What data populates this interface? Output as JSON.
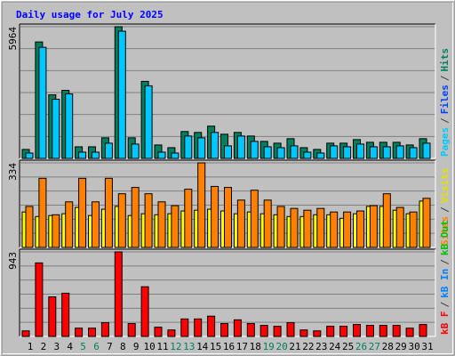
{
  "chart_data": [
    {
      "type": "bar",
      "title": "Daily usage for July 2025",
      "ylim": [
        0,
        5964
      ],
      "yticks": [
        5964
      ],
      "series": [
        {
          "name": "Hits",
          "color": "#00805c",
          "values": [
            406,
            5274,
            2881,
            3083,
            527,
            527,
            933,
            5964,
            933,
            3489,
            609,
            487,
            1217,
            1177,
            1461,
            1095,
            1177,
            1014,
            771,
            690,
            893,
            487,
            406,
            690,
            690,
            852,
            730,
            730,
            730,
            609,
            893
          ]
        },
        {
          "name": "Pages",
          "color": "#00c8ff",
          "values": [
            243,
            5031,
            2678,
            2921,
            284,
            284,
            690,
            5761,
            649,
            3286,
            284,
            243,
            1014,
            933,
            1177,
            568,
            1014,
            771,
            527,
            487,
            568,
            284,
            243,
            568,
            527,
            649,
            527,
            527,
            568,
            487,
            690
          ]
        }
      ],
      "legend": [
        {
          "label": "Pages",
          "color": "#00c8ff"
        },
        {
          "label": "/",
          "color": "#404040"
        },
        {
          "label": "Files",
          "color": "#0040ff"
        },
        {
          "label": "/",
          "color": "#404040"
        },
        {
          "label": "Hits",
          "color": "#00805c"
        }
      ]
    },
    {
      "type": "bar",
      "ylim": [
        0,
        334
      ],
      "yticks": [
        334
      ],
      "series": [
        {
          "name": "Visits",
          "color": "#ffff00",
          "values": [
            140,
            122,
            126,
            133,
            158,
            126,
            151,
            162,
            126,
            133,
            129,
            133,
            144,
            147,
            151,
            144,
            133,
            140,
            133,
            129,
            122,
            122,
            129,
            129,
            115,
            133,
            162,
            162,
            147,
            133,
            183
          ]
        },
        {
          "name": "Sites",
          "color": "#ff8000",
          "values": [
            162,
            273,
            129,
            180,
            273,
            180,
            273,
            212,
            237,
            212,
            180,
            165,
            230,
            334,
            241,
            237,
            187,
            226,
            187,
            162,
            154,
            147,
            154,
            140,
            140,
            144,
            165,
            212,
            158,
            140,
            194
          ]
        }
      ],
      "legend": [
        {
          "label": "Sites",
          "color": "#ff8000"
        },
        {
          "label": "/",
          "color": "#404040"
        },
        {
          "label": "Visits",
          "color": "#e0e000"
        }
      ]
    },
    {
      "type": "bar",
      "ylim": [
        0,
        943
      ],
      "yticks": [
        943
      ],
      "categories": [
        "1",
        "2",
        "3",
        "4",
        "5",
        "6",
        "7",
        "8",
        "9",
        "10",
        "11",
        "12",
        "13",
        "14",
        "15",
        "16",
        "17",
        "18",
        "19",
        "20",
        "21",
        "22",
        "23",
        "24",
        "25",
        "26",
        "27",
        "28",
        "29",
        "30",
        "31"
      ],
      "highlight_categories": [
        "5",
        "6",
        "12",
        "13",
        "19",
        "20",
        "26",
        "27"
      ],
      "highlight_color": "#00805c",
      "series": [
        {
          "name": "kB F",
          "color": "#ff0000",
          "values": [
            62,
            820,
            441,
            482,
            92,
            92,
            154,
            943,
            144,
            554,
            103,
            72,
            195,
            195,
            226,
            144,
            185,
            144,
            123,
            113,
            154,
            72,
            62,
            113,
            113,
            133,
            123,
            123,
            123,
            92,
            133
          ]
        }
      ],
      "legend": [
        {
          "label": "kB F",
          "color": "#ff0000"
        },
        {
          "label": "/",
          "color": "#404040"
        },
        {
          "label": "kB In",
          "color": "#0080ff"
        },
        {
          "label": "/",
          "color": "#404040"
        },
        {
          "label": "kB Out",
          "color": "#00c000"
        }
      ]
    }
  ]
}
